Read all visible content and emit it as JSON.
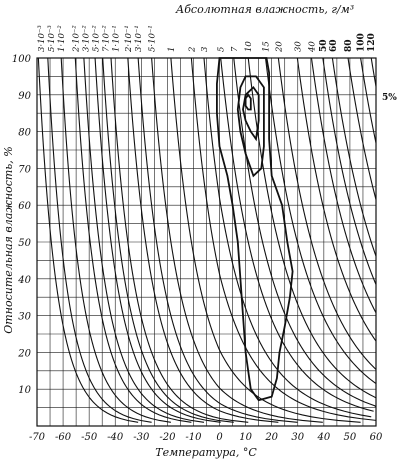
{
  "chart_data": {
    "type": "line",
    "title": "Абсолютная влажность, г/м³",
    "xlabel": "Температура, °С",
    "ylabel": "Относительная влажность, %",
    "xlim": [
      -70,
      60
    ],
    "ylim": [
      0,
      100
    ],
    "x_ticks": [
      "-70",
      "-60",
      "-50",
      "-40",
      "-30",
      "-20",
      "-10",
      "0",
      "10",
      "20",
      "30",
      "40",
      "50",
      "60"
    ],
    "y_ticks": [
      "10",
      "20",
      "30",
      "40",
      "50",
      "60",
      "70",
      "80",
      "90",
      "100"
    ],
    "absolute_humidity_levels": [
      {
        "label": "3·10⁻³",
        "value": 0.003
      },
      {
        "label": "5·10⁻³",
        "value": 0.005
      },
      {
        "label": "1·10⁻²",
        "value": 0.01
      },
      {
        "label": "2·10⁻²",
        "value": 0.02
      },
      {
        "label": "3·10⁻²",
        "value": 0.03
      },
      {
        "label": "5·10⁻²",
        "value": 0.05
      },
      {
        "label": "7·10⁻²",
        "value": 0.07
      },
      {
        "label": "1·10⁻¹",
        "value": 0.1
      },
      {
        "label": "2·10⁻¹",
        "value": 0.2
      },
      {
        "label": "3·10⁻¹",
        "value": 0.3
      },
      {
        "label": "5·10⁻¹",
        "value": 0.5
      },
      {
        "label": "1",
        "value": 1
      },
      {
        "label": "2",
        "value": 2
      },
      {
        "label": "3",
        "value": 3
      },
      {
        "label": "5",
        "value": 5
      },
      {
        "label": "7",
        "value": 7
      },
      {
        "label": "10",
        "value": 10
      },
      {
        "label": "15",
        "value": 15
      },
      {
        "label": "20",
        "value": 20
      },
      {
        "label": "30",
        "value": 30
      },
      {
        "label": "40",
        "value": 40
      },
      {
        "label": "50",
        "value": 50
      },
      {
        "label": "60",
        "value": 60
      },
      {
        "label": "80",
        "value": 80
      },
      {
        "label": "100",
        "value": 100
      },
      {
        "label": "120",
        "value": 120
      }
    ],
    "contours": [
      {
        "label": "5%",
        "points": [
          [
            0,
            100
          ],
          [
            18,
            100
          ],
          [
            19,
            96
          ],
          [
            19,
            88
          ],
          [
            19,
            78
          ],
          [
            20,
            68
          ],
          [
            24,
            60
          ],
          [
            26,
            50
          ],
          [
            28,
            42
          ],
          [
            27,
            35
          ],
          [
            25,
            27
          ],
          [
            23,
            20
          ],
          [
            22,
            13
          ],
          [
            20,
            8
          ],
          [
            15,
            7
          ],
          [
            12,
            10
          ],
          [
            10,
            20
          ],
          [
            9,
            30
          ],
          [
            8,
            40
          ],
          [
            7,
            50
          ],
          [
            5,
            60
          ],
          [
            3,
            68
          ],
          [
            0,
            76
          ],
          [
            -1,
            85
          ],
          [
            -1,
            93
          ],
          [
            0,
            100
          ]
        ]
      },
      {
        "label": "",
        "points": [
          [
            8,
            92
          ],
          [
            10,
            95
          ],
          [
            14,
            95
          ],
          [
            17,
            92
          ],
          [
            17,
            85
          ],
          [
            17,
            76
          ],
          [
            16,
            70
          ],
          [
            13,
            68
          ],
          [
            10,
            74
          ],
          [
            8,
            80
          ],
          [
            7,
            86
          ],
          [
            8,
            92
          ]
        ]
      },
      {
        "label": "",
        "points": [
          [
            10,
            90
          ],
          [
            13,
            92
          ],
          [
            15,
            90
          ],
          [
            15,
            83
          ],
          [
            14,
            78
          ],
          [
            12,
            80
          ],
          [
            10,
            83
          ],
          [
            9,
            86
          ],
          [
            10,
            90
          ]
        ]
      },
      {
        "label": "",
        "points": [
          [
            10,
            89
          ],
          [
            11,
            90
          ],
          [
            12,
            89
          ],
          [
            12,
            86
          ],
          [
            11,
            86
          ],
          [
            10,
            87
          ],
          [
            10,
            89
          ]
        ]
      }
    ],
    "side_label": "5%",
    "grid": true
  }
}
